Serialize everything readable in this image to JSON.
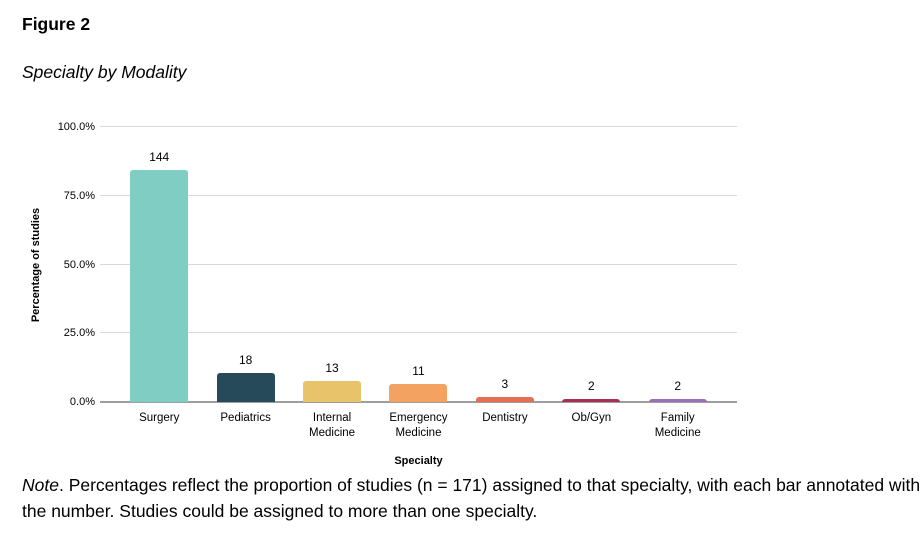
{
  "figure": {
    "label": "Figure 2",
    "title": "Specialty by Modality"
  },
  "chart_data": {
    "type": "bar",
    "title": "Specialty by Modality",
    "figure_label": "Figure 2",
    "categories": [
      "Surgery",
      "Pediatrics",
      "Internal Medicine",
      "Emergency Medicine",
      "Dentistry",
      "Ob/Gyn",
      "Family Medicine"
    ],
    "values": [
      144,
      18,
      13,
      11,
      3,
      2,
      2
    ],
    "n_total": 171,
    "percentages": [
      84.2,
      10.5,
      7.6,
      6.4,
      1.8,
      1.2,
      1.2
    ],
    "bar_value_labels": [
      "144",
      "18",
      "13",
      "11",
      "3",
      "2",
      "2"
    ],
    "xlabel": "Specialty",
    "ylabel": "Percentage of studies",
    "ylim": [
      0,
      100
    ],
    "yticks": [
      "0.0%",
      "25.0%",
      "50.0%",
      "75.0%",
      "100.0%"
    ],
    "grid": true,
    "legend": "none",
    "bar_colors": [
      "#7fcdc3",
      "#264a59",
      "#e8c36a",
      "#f4a261",
      "#e76f51",
      "#a53251",
      "#9a6fb8"
    ],
    "gridline_color": "#d9d9d9",
    "axis_line_color": "#9e9e9e"
  },
  "note": {
    "prefix": "Note",
    "body": ". Percentages reflect the proportion of studies (n = 171) assigned to that specialty, with each bar annotated with the number. Studies could be assigned to more than one specialty."
  }
}
